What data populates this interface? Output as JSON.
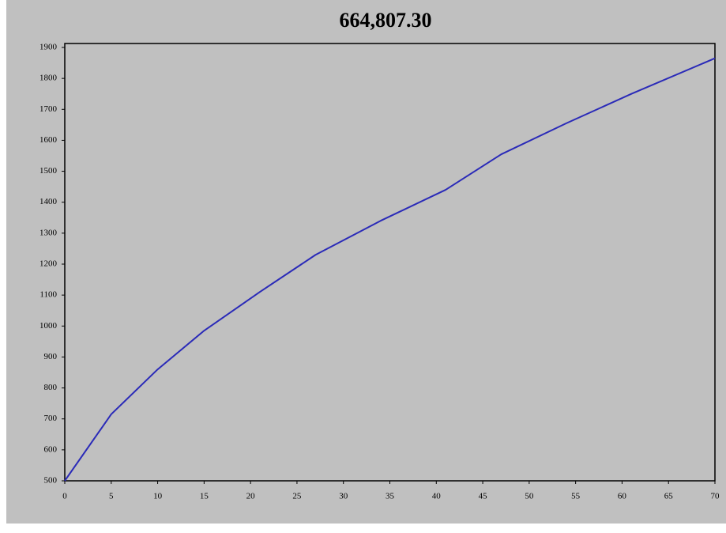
{
  "chart_data": {
    "type": "line",
    "title": "664,807.30",
    "x": [
      0,
      5,
      10,
      15,
      21,
      27,
      34,
      41,
      47,
      54,
      61,
      70
    ],
    "series": [
      {
        "color": "#2a2ab8",
        "values": [
          500,
          715,
          860,
          985,
          1110,
          1230,
          1340,
          1440,
          1555,
          1655,
          1750,
          1865
        ]
      }
    ],
    "xlim": [
      0,
      70
    ],
    "xticks": [
      0,
      5,
      10,
      15,
      20,
      25,
      30,
      35,
      40,
      45,
      50,
      55,
      60,
      65,
      70
    ],
    "ylim": [
      500,
      1900
    ],
    "yticks": [
      500,
      600,
      700,
      800,
      900,
      1000,
      1100,
      1200,
      1300,
      1400,
      1500,
      1600,
      1700,
      1800,
      1900
    ],
    "grid": false
  }
}
